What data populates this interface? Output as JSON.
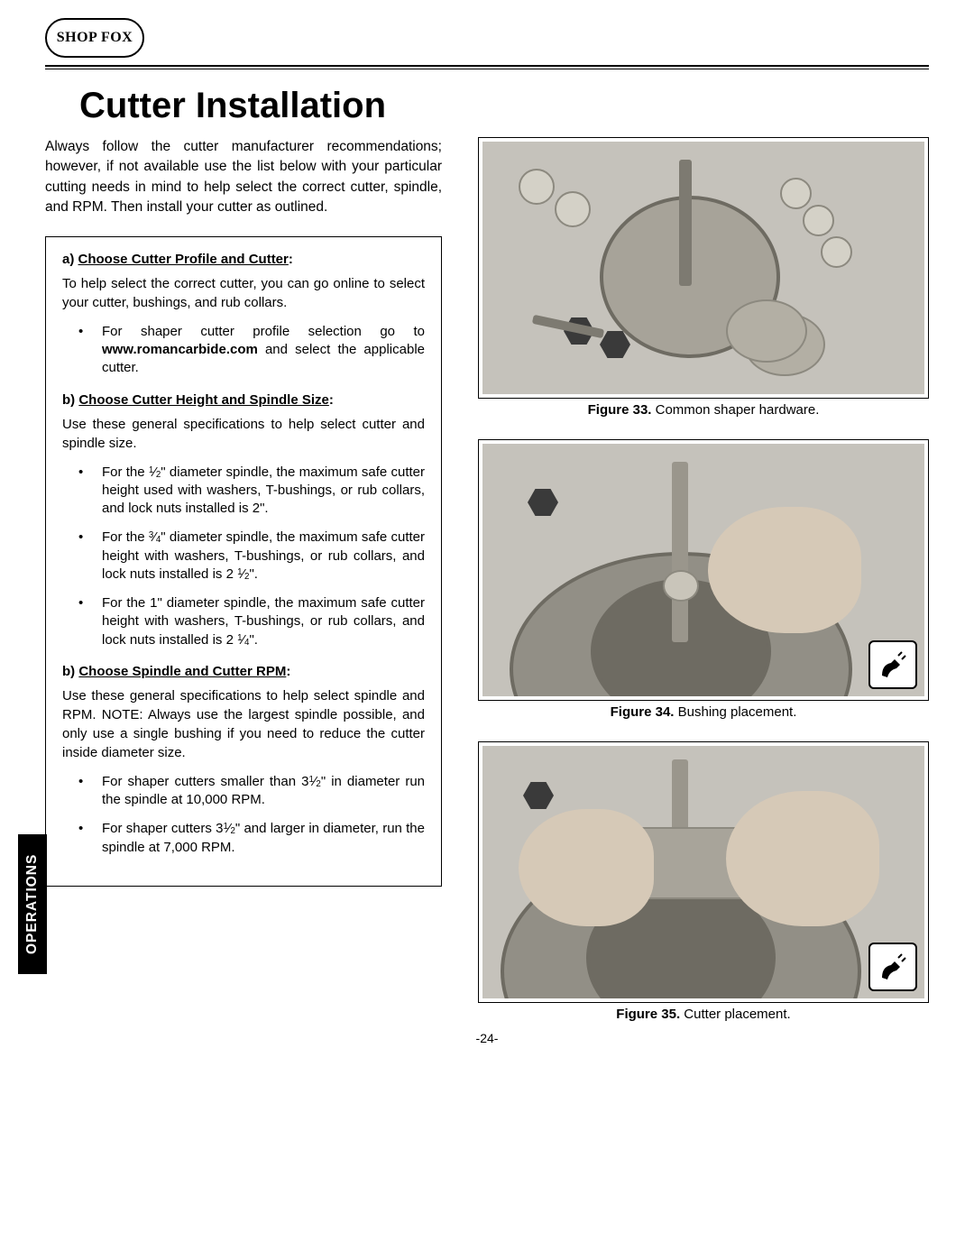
{
  "logo_text": "SHOP FOX",
  "page_title": "Cutter Installation",
  "side_tab": "OPERATIONS",
  "page_number": "-24-",
  "intro": "Always follow the cutter manufacturer recommendations; however, if not available use the list below with your particular cutting needs in mind to help select the correct cutter, spindle, and RPM. Then install your cutter as outlined.",
  "step_a": {
    "prefix": "a) ",
    "title": "Choose Cutter Profile and Cutter",
    "colon": ":",
    "body": "To help select the correct cutter, you can go online to select your cutter, bushings, and rub collars.",
    "bullet_pre": "For shaper cutter profile selection go to ",
    "bullet_url": "www.romancarbide.com",
    "bullet_post": " and select the applicable cutter."
  },
  "step_b1": {
    "prefix": "b) ",
    "title": "Choose Cutter Height and Spindle Size",
    "colon": ":",
    "body": "Use these general specifications to help select cutter and spindle size.",
    "bullets": [
      {
        "pre": "For the ",
        "frac_n": "1",
        "frac_d": "2",
        "post": "\" diameter spindle, the maximum safe cutter height used with washers, T-bushings, or rub collars, and lock nuts installed is 2\"."
      },
      {
        "pre": "For the ",
        "frac_n": "3",
        "frac_d": "4",
        "post": "\" diameter spindle, the maximum safe cutter height with washers, T-bushings, or rub collars, and lock nuts installed is 2 ",
        "end_frac_n": "1",
        "end_frac_d": "2",
        "end": "\"."
      },
      {
        "pre": "For the 1\" diameter spindle, the maximum safe cutter height with washers, T-bushings, or rub collars, and lock nuts installed is 2 ",
        "end_frac_n": "1",
        "end_frac_d": "4",
        "end": "\"."
      }
    ]
  },
  "step_b2": {
    "prefix": "b) ",
    "title": "Choose Spindle and Cutter RPM",
    "colon": ":",
    "body": "Use these general specifications to help select spindle and RPM. NOTE: Always use the largest spindle possible, and only use a single bushing if you need to reduce the cutter inside diameter size.",
    "bullets": [
      {
        "pre": "For shaper cutters smaller than 3",
        "frac_n": "1",
        "frac_d": "2",
        "post": "\" in diameter run the spindle at 10,000 RPM."
      },
      {
        "pre": "For shaper cutters 3",
        "frac_n": "1",
        "frac_d": "2",
        "post": "\" and larger in diameter, run the spindle at 7,000 RPM."
      }
    ]
  },
  "figures": {
    "f33": {
      "label": "Figure 33.",
      "caption": " Common shaper hardware."
    },
    "f34": {
      "label": "Figure 34.",
      "caption": " Bushing placement."
    },
    "f35": {
      "label": "Figure 35.",
      "caption": " Cutter placement."
    }
  },
  "colors": {
    "border": "#000000",
    "text": "#000000",
    "fig_bg": "#c5c2bb",
    "metal": "#928f86",
    "metal_dark": "#6e6b62",
    "skin": "#d6c9b7"
  }
}
